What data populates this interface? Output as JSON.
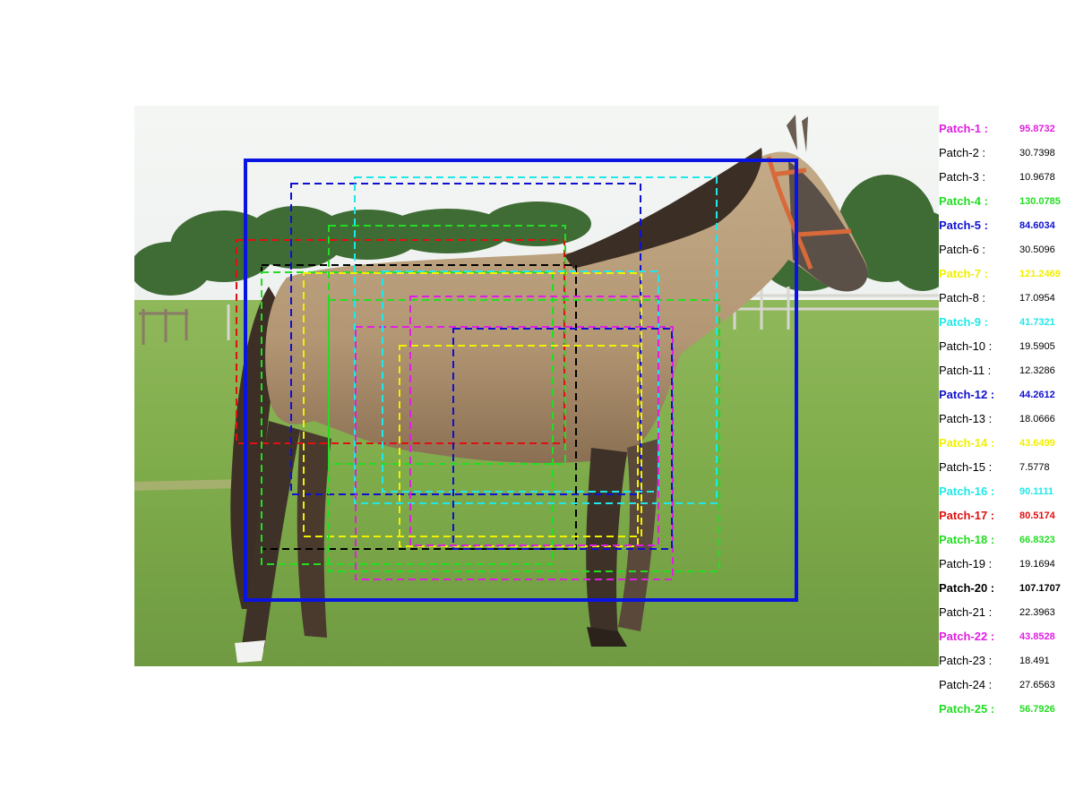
{
  "patches": [
    {
      "label": "Patch-1 :",
      "score": "95.8732",
      "color": "#e020e0",
      "highlight": true
    },
    {
      "label": "Patch-2 :",
      "score": "30.7398",
      "color": "#000000",
      "highlight": false
    },
    {
      "label": "Patch-3 :",
      "score": "10.9678",
      "color": "#000000",
      "highlight": false
    },
    {
      "label": "Patch-4 :",
      "score": "130.0785",
      "color": "#22dd22",
      "highlight": true
    },
    {
      "label": "Patch-5 :",
      "score": "84.6034",
      "color": "#1010d0",
      "highlight": true
    },
    {
      "label": "Patch-6 :",
      "score": "30.5096",
      "color": "#000000",
      "highlight": false
    },
    {
      "label": "Patch-7 :",
      "score": "121.2469",
      "color": "#f0f000",
      "highlight": true
    },
    {
      "label": "Patch-8 :",
      "score": "17.0954",
      "color": "#000000",
      "highlight": false
    },
    {
      "label": "Patch-9 :",
      "score": "41.7321",
      "color": "#20e8e8",
      "highlight": true
    },
    {
      "label": "Patch-10 :",
      "score": "19.5905",
      "color": "#000000",
      "highlight": false
    },
    {
      "label": "Patch-11 :",
      "score": "12.3286",
      "color": "#000000",
      "highlight": false
    },
    {
      "label": "Patch-12 :",
      "score": "44.2612",
      "color": "#1010d0",
      "highlight": true
    },
    {
      "label": "Patch-13 :",
      "score": "18.0666",
      "color": "#000000",
      "highlight": false
    },
    {
      "label": "Patch-14 :",
      "score": "43.6499",
      "color": "#f0f000",
      "highlight": true
    },
    {
      "label": "Patch-15 :",
      "score": "7.5778",
      "color": "#000000",
      "highlight": false
    },
    {
      "label": "Patch-16 :",
      "score": "90.1111",
      "color": "#20e8e8",
      "highlight": true
    },
    {
      "label": "Patch-17 :",
      "score": "80.5174",
      "color": "#e01010",
      "highlight": true
    },
    {
      "label": "Patch-18 :",
      "score": "66.8323",
      "color": "#22dd22",
      "highlight": true
    },
    {
      "label": "Patch-19 :",
      "score": "19.1694",
      "color": "#000000",
      "highlight": false
    },
    {
      "label": "Patch-20 :",
      "score": "107.1707",
      "color": "#000000",
      "highlight": true
    },
    {
      "label": "Patch-21 :",
      "score": "22.3963",
      "color": "#000000",
      "highlight": false
    },
    {
      "label": "Patch-22 :",
      "score": "43.8528",
      "color": "#e020e0",
      "highlight": true
    },
    {
      "label": "Patch-23 :",
      "score": "18.491",
      "color": "#000000",
      "highlight": false
    },
    {
      "label": "Patch-24 :",
      "score": "27.6563",
      "color": "#000000",
      "highlight": false
    },
    {
      "label": "Patch-25 :",
      "score": "56.7926",
      "color": "#22dd22",
      "highlight": true
    }
  ]
}
